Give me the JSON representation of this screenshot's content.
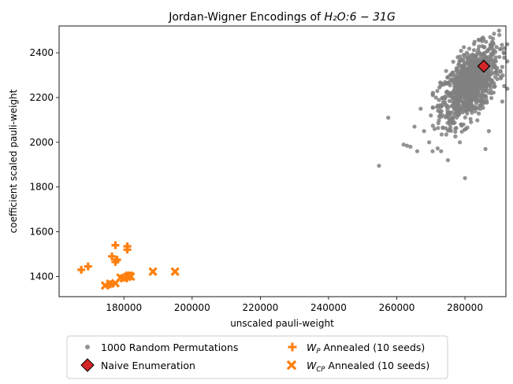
{
  "chart_data": {
    "type": "scatter",
    "title_main": "Jordan-Wigner Encodings of",
    "title_math": "H₂O:6 − 31G",
    "xlabel": "unscaled pauli-weight",
    "ylabel": "coefficient scaled pauli-weight",
    "xlim": [
      161000,
      292000
    ],
    "ylim": [
      1310,
      2520
    ],
    "xticks": [
      180000,
      200000,
      220000,
      240000,
      260000,
      280000
    ],
    "xtick_labels": [
      "180000",
      "200000",
      "220000",
      "240000",
      "260000",
      "280000"
    ],
    "yticks": [
      1400,
      1600,
      1800,
      2000,
      2200,
      2400
    ],
    "ytick_labels": [
      "1400",
      "1600",
      "1800",
      "2000",
      "2200",
      "2400"
    ],
    "grid": false,
    "legend_position": "below",
    "colors": {
      "random": "#808080",
      "naive_fill": "#d62728",
      "annealed": "#ff7f0e"
    },
    "random_cloud": {
      "count": 1000,
      "center": [
        281500,
        2260
      ],
      "spread": [
        4200,
        85
      ],
      "outliers": [
        [
          254800,
          1895
        ],
        [
          257500,
          2110
        ],
        [
          262000,
          1990
        ],
        [
          263000,
          1985
        ],
        [
          264000,
          1980
        ],
        [
          265200,
          2070
        ],
        [
          266000,
          1960
        ],
        [
          268000,
          2050
        ],
        [
          269500,
          2000
        ],
        [
          270500,
          1960
        ],
        [
          273000,
          1960
        ],
        [
          275000,
          1920
        ],
        [
          278500,
          2000
        ],
        [
          280000,
          1840
        ],
        [
          286000,
          1970
        ],
        [
          287000,
          2050
        ],
        [
          267000,
          2150
        ],
        [
          270000,
          2120
        ],
        [
          271500,
          2200
        ],
        [
          272500,
          2245
        ],
        [
          275500,
          2090
        ],
        [
          289000,
          2380
        ],
        [
          288000,
          2420
        ]
      ]
    },
    "series": [
      {
        "name": "1000 Random Permutations",
        "marker": "circle"
      },
      {
        "name": "Naive Enumeration",
        "marker": "diamond",
        "points": [
          [
            285500,
            2340
          ]
        ]
      },
      {
        "name_prefix": "W",
        "name_sub": "P",
        "name_suffix": " Annealed (10 seeds)",
        "marker": "plus",
        "points": [
          [
            167500,
            1430
          ],
          [
            169500,
            1445
          ],
          [
            176500,
            1490
          ],
          [
            177500,
            1465
          ],
          [
            177500,
            1540
          ],
          [
            178000,
            1475
          ],
          [
            181000,
            1535
          ],
          [
            181000,
            1520
          ],
          [
            181500,
            1405
          ],
          [
            176000,
            1365
          ]
        ]
      },
      {
        "name_prefix": "W",
        "name_sub": "CP",
        "name_suffix": " Annealed (10 seeds)",
        "marker": "x",
        "points": [
          [
            174500,
            1360
          ],
          [
            176000,
            1368
          ],
          [
            177500,
            1370
          ],
          [
            179000,
            1395
          ],
          [
            180000,
            1392
          ],
          [
            181000,
            1398
          ],
          [
            182000,
            1400
          ],
          [
            181500,
            1405
          ],
          [
            188500,
            1422
          ],
          [
            195000,
            1422
          ]
        ]
      }
    ]
  }
}
